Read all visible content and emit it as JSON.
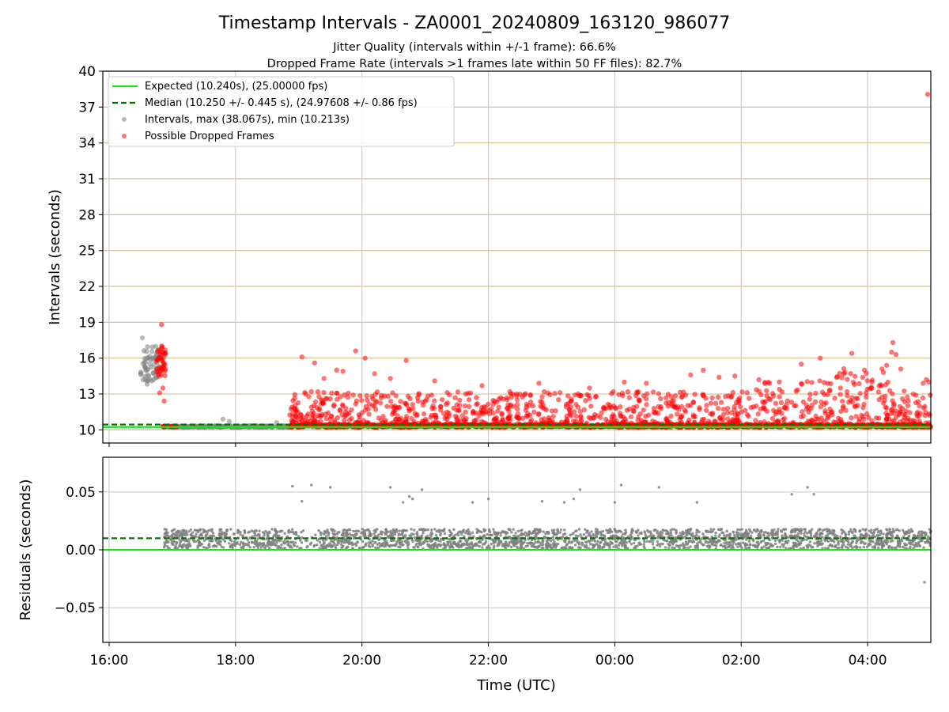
{
  "title": "Timestamp Intervals - ZA0001_20240809_163120_986077",
  "subtitle_line1": "Jitter Quality (intervals within +/-1 frame): 66.6%",
  "subtitle_line2": "Dropped Frame Rate (intervals >1 frames late within 50 FF files): 82.7%",
  "colors": {
    "expected": "#22e022",
    "median": "#007700",
    "intervals": "#808080",
    "dropped": "#ff0000",
    "grid_top": "#d4c08a",
    "grid_bottom": "#c8c8c8"
  },
  "chart_data": [
    {
      "type": "scatter",
      "panel": "intervals",
      "xlabel": "",
      "ylabel": "Intervals (seconds)",
      "x_unit": "hours since 16:00 UTC on time axis",
      "xlim": [
        -0.1,
        13.0
      ],
      "ylim": [
        8.9,
        40
      ],
      "yticks": [
        10,
        13,
        16,
        19,
        22,
        25,
        28,
        31,
        34,
        37,
        40
      ],
      "grid": "horizontal",
      "legend": {
        "placement": "top-left",
        "entries": [
          "Expected (10.240s), (25.00000 fps)",
          "Median (10.250 +/- 0.445 s), (24.97608 +/- 0.86 fps)",
          "Intervals, max (38.067s), min (10.213s)",
          "Possible Dropped Frames"
        ]
      },
      "expected_value": 10.24,
      "median_value": 10.25,
      "max_interval": 38.067,
      "min_interval": 10.213,
      "dropped_frame_outlier": {
        "x": 12.95,
        "y": 38.07
      },
      "series": [
        {
          "name": "Expected (10.240s), (25.00000 fps)",
          "kind": "line",
          "y": 10.24
        },
        {
          "name": "Median (10.250 +/- 0.445 s), (24.97608 +/- 0.86 fps)",
          "kind": "dashed-line",
          "y": 10.25
        },
        {
          "name": "Intervals, max (38.067s), min (10.213s)",
          "kind": "points",
          "range": [
            0.5,
            13.0
          ]
        },
        {
          "name": "Possible Dropped Frames",
          "kind": "points",
          "range": [
            0.8,
            13.0
          ]
        }
      ]
    },
    {
      "type": "scatter",
      "panel": "residuals",
      "xlabel": "Time (UTC)",
      "ylabel": "Residuals (seconds)",
      "xlim": [
        -0.1,
        13.0
      ],
      "ylim": [
        -0.08,
        0.08
      ],
      "yticks": [
        -0.05,
        0.0,
        0.05
      ],
      "ytick_labels": [
        "−0.05",
        "0.00",
        "0.05"
      ],
      "xticks": [
        0,
        2,
        4,
        6,
        8,
        10,
        12
      ],
      "xtick_labels": [
        "16:00",
        "18:00",
        "20:00",
        "22:00",
        "00:00",
        "02:00",
        "04:00"
      ],
      "grid": "both",
      "expected_value": 0.0,
      "median_value": 0.01,
      "residual_band": [
        0.0,
        0.018
      ],
      "outliers": [
        {
          "x": 2.9,
          "y": 0.055
        },
        {
          "x": 3.05,
          "y": 0.042
        },
        {
          "x": 3.2,
          "y": 0.056
        },
        {
          "x": 3.5,
          "y": 0.054
        },
        {
          "x": 4.45,
          "y": 0.054
        },
        {
          "x": 4.65,
          "y": 0.041
        },
        {
          "x": 4.75,
          "y": 0.046
        },
        {
          "x": 4.8,
          "y": 0.044
        },
        {
          "x": 4.95,
          "y": 0.052
        },
        {
          "x": 5.75,
          "y": 0.041
        },
        {
          "x": 6.0,
          "y": 0.044
        },
        {
          "x": 6.85,
          "y": 0.042
        },
        {
          "x": 7.2,
          "y": 0.041
        },
        {
          "x": 7.35,
          "y": 0.044
        },
        {
          "x": 7.45,
          "y": 0.052
        },
        {
          "x": 8.0,
          "y": 0.041
        },
        {
          "x": 8.1,
          "y": 0.056
        },
        {
          "x": 8.7,
          "y": 0.054
        },
        {
          "x": 9.3,
          "y": 0.041
        },
        {
          "x": 10.8,
          "y": 0.048
        },
        {
          "x": 11.05,
          "y": 0.054
        },
        {
          "x": 11.15,
          "y": 0.048
        },
        {
          "x": 12.9,
          "y": -0.028
        }
      ]
    }
  ]
}
